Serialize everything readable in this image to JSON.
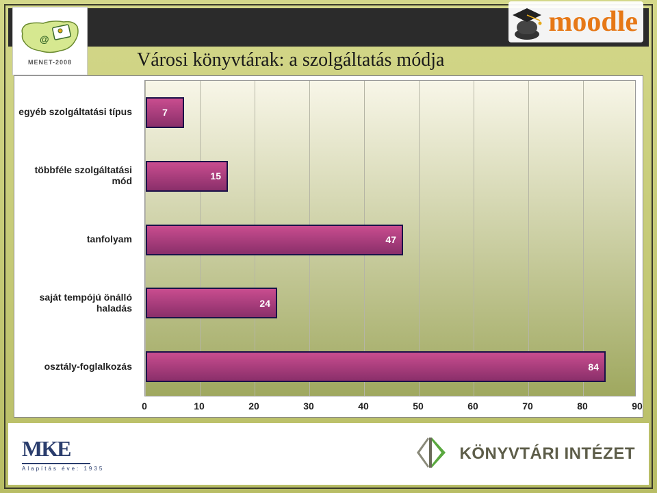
{
  "header": {
    "left_logo_year": "MENET-2008",
    "right_logo_text": "moodle"
  },
  "title": "Városi könyvtárak: a szolgáltatás módja",
  "chart": {
    "type": "bar",
    "orientation": "horizontal",
    "xlim": [
      0,
      90
    ],
    "xtick_step": 10,
    "xticks": [
      0,
      10,
      20,
      30,
      40,
      50,
      60,
      70,
      80,
      90
    ],
    "categories": [
      "egyéb szolgáltatási típus",
      "többféle szolgáltatási mód",
      "tanfolyam",
      "saját tempójú önálló haladás",
      "osztály-foglalkozás"
    ],
    "values": [
      7,
      15,
      47,
      24,
      84
    ],
    "bar_fill_top": "#c94d8f",
    "bar_fill_bottom": "#8a2f6a",
    "bar_border": "#1a1148",
    "value_label_color": "#ffffff",
    "plot_bg_top": "#f8f6e8",
    "plot_bg_bottom": "#9fa85f",
    "grid_color": "#b5b5a5",
    "label_font_size": 14,
    "value_font_size": 14
  },
  "footer": {
    "left_text": "MKE",
    "left_sub": "Alapítás éve: 1935",
    "right_text": "KÖNYVTÁRI INTÉZET"
  },
  "colors": {
    "page_bg_top": "#d4d88a",
    "page_bg_bottom": "#b8bd65",
    "header_bar": "#2b2b2b",
    "moodle_orange": "#e67817",
    "footer_text": "#5d5d49",
    "mke_blue": "#2a3d6d",
    "ki_green": "#5aa83f"
  }
}
